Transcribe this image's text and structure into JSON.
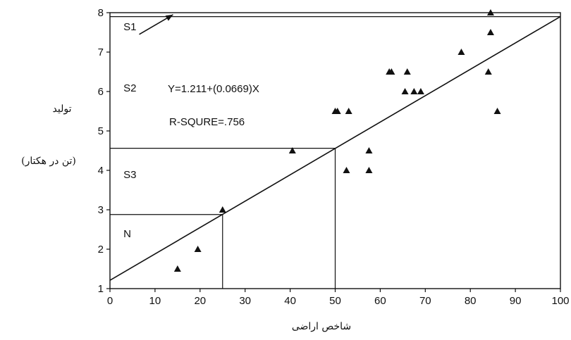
{
  "chart_data": {
    "type": "scatter",
    "xlabel": "شاخص اراضی",
    "ylabel_line1": "تولید",
    "ylabel_line2": "(تن در هکتار)",
    "xlim": [
      0,
      100
    ],
    "ylim": [
      1,
      8
    ],
    "x_ticks": [
      0,
      10,
      20,
      30,
      40,
      50,
      60,
      70,
      80,
      90,
      100
    ],
    "y_ticks": [
      1,
      2,
      3,
      4,
      5,
      6,
      7,
      8
    ],
    "grid": false,
    "equation": "Y=1.211+(0.0669)X",
    "r_squared_label": "R-SQURE=.756",
    "regression": {
      "intercept": 1.211,
      "slope": 0.0669
    },
    "points": [
      {
        "x": 15,
        "y": 1.5
      },
      {
        "x": 19.5,
        "y": 2.0
      },
      {
        "x": 25,
        "y": 3.0
      },
      {
        "x": 40.5,
        "y": 4.5
      },
      {
        "x": 50.5,
        "y": 5.5
      },
      {
        "x": 52.5,
        "y": 4.0
      },
      {
        "x": 53,
        "y": 5.5
      },
      {
        "x": 57.5,
        "y": 4.5
      },
      {
        "x": 57.5,
        "y": 4.0
      },
      {
        "x": 50,
        "y": 5.5
      },
      {
        "x": 62,
        "y": 6.5
      },
      {
        "x": 62.5,
        "y": 6.5
      },
      {
        "x": 66,
        "y": 6.5
      },
      {
        "x": 65.5,
        "y": 6.0
      },
      {
        "x": 67.5,
        "y": 6.0
      },
      {
        "x": 69,
        "y": 6.0
      },
      {
        "x": 78,
        "y": 7.0
      },
      {
        "x": 84,
        "y": 6.5
      },
      {
        "x": 84.5,
        "y": 7.5
      },
      {
        "x": 84.5,
        "y": 8.0
      },
      {
        "x": 86,
        "y": 5.5
      }
    ],
    "classes": [
      {
        "label": "S1",
        "label_x": 3,
        "label_y": 7.55,
        "boundary_x": 100,
        "boundary_y": 7.9
      },
      {
        "label": "S2",
        "label_x": 3,
        "label_y": 6.0,
        "boundary_x": 50,
        "boundary_y": 4.56
      },
      {
        "label": "S3",
        "label_x": 3,
        "label_y": 3.8,
        "boundary_x": 25,
        "boundary_y": 2.88
      },
      {
        "label": "N",
        "label_x": 3,
        "label_y": 2.3,
        "boundary_x": null,
        "boundary_y": null
      }
    ],
    "arrow": {
      "from_x": 6.5,
      "from_y": 7.45,
      "to_x": 14,
      "to_y": 7.95
    }
  }
}
